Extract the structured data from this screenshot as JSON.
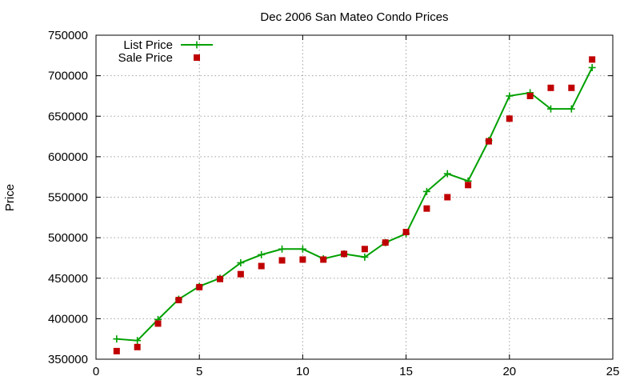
{
  "chart_data": {
    "type": "line",
    "title": "Dec 2006 San Mateo Condo Prices",
    "xlabel": "",
    "ylabel": "Price",
    "xlim": [
      0,
      25
    ],
    "ylim": [
      350000,
      750000
    ],
    "xticks": [
      0,
      5,
      10,
      15,
      20,
      25
    ],
    "yticks": [
      350000,
      400000,
      450000,
      500000,
      550000,
      600000,
      650000,
      700000,
      750000
    ],
    "grid": true,
    "legend_position": "top-left",
    "series": [
      {
        "name": "List Price",
        "style": "line-plus",
        "color": "#00a000",
        "x": [
          1,
          2,
          3,
          4,
          5,
          6,
          7,
          8,
          9,
          10,
          11,
          12,
          13,
          14,
          15,
          16,
          17,
          18,
          19,
          20,
          21,
          22,
          23,
          24
        ],
        "y": [
          375000,
          373000,
          399000,
          424000,
          440000,
          450000,
          469000,
          479000,
          486000,
          486000,
          474000,
          480000,
          476000,
          494000,
          505000,
          557000,
          579000,
          570000,
          620000,
          675000,
          679000,
          659000,
          659000,
          710000
        ]
      },
      {
        "name": "Sale Price",
        "style": "points-square",
        "color": "#c00000",
        "x": [
          1,
          2,
          3,
          4,
          5,
          6,
          7,
          8,
          9,
          10,
          11,
          12,
          13,
          14,
          15,
          16,
          17,
          18,
          19,
          20,
          21,
          22,
          23,
          24
        ],
        "y": [
          360000,
          365000,
          394000,
          423000,
          439000,
          449000,
          455000,
          465000,
          472000,
          473000,
          473000,
          480000,
          486000,
          494000,
          507000,
          536000,
          550000,
          565000,
          619000,
          647000,
          675000,
          685000,
          685000,
          720000
        ]
      }
    ]
  }
}
